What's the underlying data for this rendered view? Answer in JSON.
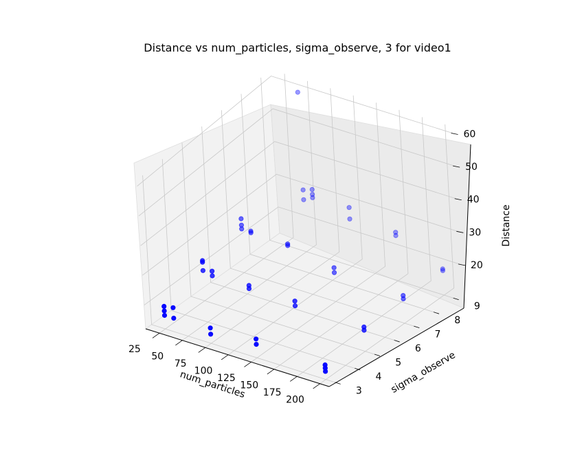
{
  "chart_data": {
    "type": "scatter",
    "projection": "3d",
    "title": "Distance vs num_particles, sigma_observe, 3 for video1",
    "xlabel": "num_particles",
    "ylabel": "sigma_observe",
    "zlabel": "Distance",
    "xlim": [
      10,
      210
    ],
    "ylim": [
      2.7,
      9.5
    ],
    "zlim": [
      12,
      62
    ],
    "xticks": [
      25,
      50,
      75,
      100,
      125,
      150,
      175,
      200
    ],
    "yticks": [
      3,
      4,
      5,
      6,
      7,
      8,
      9
    ],
    "zticks": [
      20,
      30,
      40,
      50,
      60
    ],
    "marker_color": "#0000ff",
    "grid": true,
    "points": [
      {
        "x": 50,
        "y": 9,
        "z": 61
      },
      {
        "x": 50,
        "y": 9,
        "z": 31
      },
      {
        "x": 50,
        "y": 9,
        "z": 28
      },
      {
        "x": 60,
        "y": 9,
        "z": 32
      },
      {
        "x": 60,
        "y": 9,
        "z": 30.5
      },
      {
        "x": 60,
        "y": 9,
        "z": 29.5
      },
      {
        "x": 100,
        "y": 9,
        "z": 30
      },
      {
        "x": 100,
        "y": 9,
        "z": 26.5
      },
      {
        "x": 150,
        "y": 9,
        "z": 26.8
      },
      {
        "x": 150,
        "y": 9,
        "z": 25.8
      },
      {
        "x": 200,
        "y": 9,
        "z": 20
      },
      {
        "x": 200,
        "y": 9,
        "z": 19.5
      },
      {
        "x": 25,
        "y": 7,
        "z": 29
      },
      {
        "x": 25,
        "y": 7,
        "z": 27
      },
      {
        "x": 25,
        "y": 7,
        "z": 25.8
      },
      {
        "x": 35,
        "y": 7,
        "z": 26
      },
      {
        "x": 35,
        "y": 7,
        "z": 25.5
      },
      {
        "x": 75,
        "y": 7,
        "z": 25.5
      },
      {
        "x": 75,
        "y": 7,
        "z": 25
      },
      {
        "x": 125,
        "y": 7,
        "z": 22.5
      },
      {
        "x": 125,
        "y": 7,
        "z": 21
      },
      {
        "x": 200,
        "y": 7,
        "z": 20.5
      },
      {
        "x": 200,
        "y": 7,
        "z": 19.5
      },
      {
        "x": 25,
        "y": 5,
        "z": 25
      },
      {
        "x": 25,
        "y": 5,
        "z": 24.5
      },
      {
        "x": 35,
        "y": 5,
        "z": 22.5
      },
      {
        "x": 25,
        "y": 5,
        "z": 21.8
      },
      {
        "x": 35,
        "y": 5,
        "z": 21
      },
      {
        "x": 75,
        "y": 5,
        "z": 21.5
      },
      {
        "x": 75,
        "y": 5,
        "z": 20.5
      },
      {
        "x": 125,
        "y": 5,
        "z": 21
      },
      {
        "x": 125,
        "y": 5,
        "z": 19.5
      },
      {
        "x": 200,
        "y": 5,
        "z": 19.5
      },
      {
        "x": 200,
        "y": 5,
        "z": 18.5
      },
      {
        "x": 25,
        "y": 3,
        "z": 19.5
      },
      {
        "x": 25,
        "y": 3,
        "z": 18
      },
      {
        "x": 25,
        "y": 3,
        "z": 16.5
      },
      {
        "x": 35,
        "y": 3,
        "z": 20
      },
      {
        "x": 35,
        "y": 3,
        "z": 16.5
      },
      {
        "x": 75,
        "y": 3,
        "z": 17
      },
      {
        "x": 75,
        "y": 3,
        "z": 15
      },
      {
        "x": 125,
        "y": 3,
        "z": 18
      },
      {
        "x": 125,
        "y": 3,
        "z": 16.3
      },
      {
        "x": 200,
        "y": 3,
        "z": 16.5
      },
      {
        "x": 200,
        "y": 3,
        "z": 15.5
      },
      {
        "x": 200,
        "y": 3,
        "z": 14.5
      }
    ]
  }
}
